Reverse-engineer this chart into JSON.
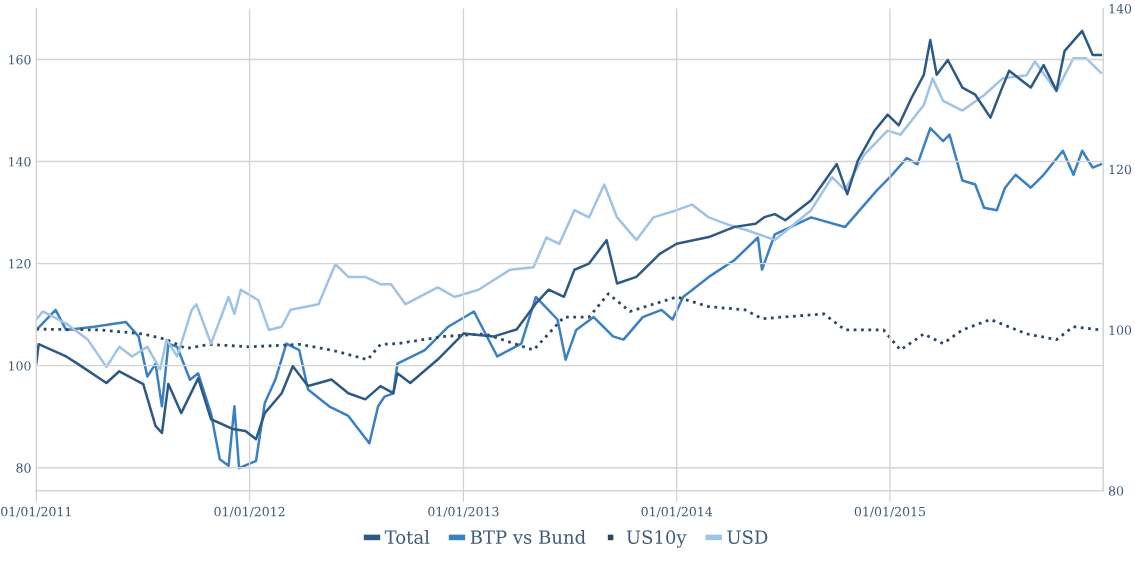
{
  "chart_data": {
    "type": "line",
    "legend": "bottom",
    "grid": true,
    "marker": "none",
    "xlim": [
      "2011-01-01",
      "2016-01-01"
    ],
    "xticks": [
      {
        "value": "2011-01-01",
        "label": "01/01/2011"
      },
      {
        "value": "2012-01-01",
        "label": "01/01/2012"
      },
      {
        "value": "2013-01-01",
        "label": "01/01/2013"
      },
      {
        "value": "2014-01-01",
        "label": "01/01/2014"
      },
      {
        "value": "2015-01-01",
        "label": "01/01/2015"
      }
    ],
    "ylim": [
      75.5,
      170
    ],
    "yticks": [
      80,
      100,
      120,
      140,
      160
    ],
    "y2lim": [
      80,
      140
    ],
    "y2ticks": [
      80,
      100,
      120,
      140
    ],
    "series": [
      {
        "name": "Total",
        "color": "#2d5a84",
        "line_style": "solid",
        "x": [
          "2011-01-01",
          "2011-01-05",
          "2011-02-21",
          "2011-03-11",
          "2011-05-01",
          "2011-05-23",
          "2011-07-03",
          "2011-07-24",
          "2011-08-04",
          "2011-08-15",
          "2011-09-06",
          "2011-10-05",
          "2011-10-27",
          "2011-12-03",
          "2011-12-25",
          "2012-01-12",
          "2012-01-27",
          "2012-02-25",
          "2012-03-15",
          "2012-04-10",
          "2012-05-20",
          "2012-06-18",
          "2012-07-17",
          "2012-08-12",
          "2012-09-03",
          "2012-09-10",
          "2012-10-02",
          "2012-11-18",
          "2013-01-01",
          "2013-02-21",
          "2013-04-02",
          "2013-05-05",
          "2013-05-27",
          "2013-06-22",
          "2013-07-10",
          "2013-08-04",
          "2013-09-03",
          "2013-09-21",
          "2013-10-24",
          "2013-12-03",
          "2014-01-01",
          "2014-02-25",
          "2014-04-10",
          "2014-05-16",
          "2014-05-31",
          "2014-06-18",
          "2014-07-06",
          "2014-08-19",
          "2014-10-02",
          "2014-10-20",
          "2014-11-07",
          "2014-12-06",
          "2014-12-28",
          "2015-01-16",
          "2015-02-07",
          "2015-02-28",
          "2015-03-11",
          "2015-03-22",
          "2015-04-10",
          "2015-05-05",
          "2015-05-27",
          "2015-06-22",
          "2015-07-10",
          "2015-07-24",
          "2015-08-30",
          "2015-09-21",
          "2015-10-13",
          "2015-10-27",
          "2015-11-26",
          "2015-12-14",
          "2015-12-28"
        ],
        "values": [
          100.5,
          104.2,
          101.8,
          100.5,
          96.6,
          98.9,
          96.4,
          88.2,
          86.8,
          96.4,
          90.7,
          97.5,
          89.5,
          87.6,
          87.2,
          85.6,
          90.7,
          94.6,
          99.9,
          96.0,
          97.3,
          94.6,
          93.4,
          96.0,
          94.6,
          98.5,
          96.6,
          101.2,
          106.3,
          105.7,
          107.1,
          112.2,
          114.9,
          113.5,
          118.8,
          120.0,
          124.6,
          116.1,
          117.4,
          121.9,
          123.9,
          125.2,
          127.2,
          127.8,
          129.1,
          129.7,
          128.5,
          132.4,
          139.5,
          133.6,
          140.2,
          146.1,
          149.2,
          147.1,
          152.5,
          157.0,
          163.8,
          157.0,
          159.9,
          154.5,
          153.1,
          148.6,
          153.9,
          157.8,
          154.5,
          158.9,
          153.9,
          161.7,
          165.6,
          160.9,
          160.9
        ]
      },
      {
        "name": "BTP vs Bund",
        "color": "#3a80c3",
        "line_style": "solid",
        "axis": "y2",
        "x": [
          "2011-01-01",
          "2011-02-03",
          "2011-02-21",
          "2011-04-10",
          "2011-06-03",
          "2011-06-25",
          "2011-07-10",
          "2011-07-24",
          "2011-08-04",
          "2011-08-15",
          "2011-08-30",
          "2011-09-21",
          "2011-10-05",
          "2011-10-27",
          "2011-11-11",
          "2011-11-26",
          "2011-12-06",
          "2011-12-14",
          "2012-01-12",
          "2012-01-27",
          "2012-02-14",
          "2012-03-04",
          "2012-03-26",
          "2012-04-10",
          "2012-05-16",
          "2012-06-18",
          "2012-07-24",
          "2012-08-08",
          "2012-08-19",
          "2012-09-03",
          "2012-09-10",
          "2012-10-27",
          "2012-12-06",
          "2013-01-19",
          "2013-02-28",
          "2013-04-10",
          "2013-05-05",
          "2013-06-11",
          "2013-06-25",
          "2013-07-13",
          "2013-08-12",
          "2013-09-14",
          "2013-10-02",
          "2013-11-04",
          "2013-12-06",
          "2013-12-25",
          "2014-01-12",
          "2014-02-25",
          "2014-04-10",
          "2014-05-20",
          "2014-05-27",
          "2014-06-18",
          "2014-08-19",
          "2014-10-16",
          "2014-12-10",
          "2015-01-01",
          "2015-01-30",
          "2015-02-17",
          "2015-03-11",
          "2015-04-02",
          "2015-04-13",
          "2015-05-05",
          "2015-05-27",
          "2015-06-11",
          "2015-07-03",
          "2015-07-17",
          "2015-08-04",
          "2015-08-30",
          "2015-09-21",
          "2015-10-24",
          "2015-11-11",
          "2015-11-26",
          "2015-12-14",
          "2015-12-28"
        ],
        "values": [
          100.0,
          102.5,
          100.0,
          100.4,
          101.0,
          99.2,
          94.2,
          95.8,
          90.5,
          98.3,
          97.9,
          93.8,
          94.6,
          89.6,
          83.9,
          83.1,
          90.5,
          82.8,
          83.7,
          90.9,
          93.8,
          98.3,
          97.5,
          92.6,
          90.5,
          89.3,
          85.9,
          90.5,
          91.7,
          92.1,
          95.8,
          97.5,
          100.4,
          102.3,
          96.7,
          98.3,
          104.1,
          101.3,
          96.3,
          100.0,
          101.6,
          99.2,
          98.8,
          101.6,
          102.5,
          101.3,
          104.1,
          106.6,
          108.7,
          111.5,
          107.5,
          111.9,
          114.0,
          112.8,
          117.4,
          119.0,
          121.4,
          120.6,
          125.1,
          123.5,
          124.3,
          118.6,
          118.1,
          115.2,
          114.9,
          117.7,
          119.3,
          117.7,
          119.3,
          122.3,
          119.3,
          122.3,
          120.2,
          120.6
        ]
      },
      {
        "name": "US10y",
        "color": "#2b4766",
        "line_style": "dotted",
        "axis": "y2",
        "x": [
          "2011-01-01",
          "2011-04-21",
          "2011-07-03",
          "2011-08-12",
          "2011-09-14",
          "2011-10-24",
          "2012-01-01",
          "2012-03-26",
          "2012-05-20",
          "2012-07-21",
          "2012-08-12",
          "2012-09-10",
          "2012-11-29",
          "2013-02-07",
          "2013-05-01",
          "2013-06-22",
          "2013-08-04",
          "2013-09-06",
          "2013-10-13",
          "2014-01-01",
          "2014-02-25",
          "2014-04-28",
          "2014-05-27",
          "2014-09-10",
          "2014-10-16",
          "2014-12-21",
          "2015-01-19",
          "2015-02-28",
          "2015-04-02",
          "2015-05-05",
          "2015-06-22",
          "2015-08-23",
          "2015-10-13",
          "2015-11-11",
          "2015-12-28"
        ],
        "values": [
          100.1,
          100.0,
          99.5,
          98.8,
          97.7,
          98.2,
          97.9,
          98.2,
          97.5,
          96.3,
          98.2,
          98.3,
          99.2,
          99.5,
          97.5,
          101.6,
          101.6,
          104.5,
          102.3,
          104.1,
          102.9,
          102.5,
          101.4,
          102.0,
          100.0,
          100.0,
          97.5,
          99.5,
          98.3,
          100.0,
          101.3,
          99.5,
          98.8,
          100.4,
          100.0
        ]
      },
      {
        "name": "USD",
        "color": "#9dc3e6",
        "line_style": "solid",
        "axis": "y2",
        "x": [
          "2011-01-01",
          "2011-01-12",
          "2011-02-21",
          "2011-03-30",
          "2011-05-01",
          "2011-05-23",
          "2011-06-14",
          "2011-07-10",
          "2011-08-01",
          "2011-08-12",
          "2011-08-30",
          "2011-09-24",
          "2011-10-02",
          "2011-10-27",
          "2011-11-26",
          "2011-12-06",
          "2011-12-17",
          "2012-01-16",
          "2012-02-03",
          "2012-02-25",
          "2012-03-11",
          "2012-04-28",
          "2012-05-27",
          "2012-06-18",
          "2012-07-17",
          "2012-08-12",
          "2012-08-30",
          "2012-09-24",
          "2012-11-18",
          "2012-12-17",
          "2013-01-27",
          "2013-03-22",
          "2013-05-01",
          "2013-05-23",
          "2013-06-14",
          "2013-07-10",
          "2013-08-04",
          "2013-08-30",
          "2013-09-21",
          "2013-10-24",
          "2013-11-22",
          "2014-01-01",
          "2014-01-27",
          "2014-02-25",
          "2014-03-30",
          "2014-05-01",
          "2014-06-18",
          "2014-08-19",
          "2014-09-24",
          "2014-10-16",
          "2014-11-18",
          "2014-12-28",
          "2015-01-19",
          "2015-02-28",
          "2015-03-15",
          "2015-04-02",
          "2015-05-05",
          "2015-06-11",
          "2015-07-13",
          "2015-08-23",
          "2015-09-06",
          "2015-10-13",
          "2015-11-11",
          "2015-12-03",
          "2015-12-28"
        ],
        "values": [
          101.3,
          102.3,
          100.8,
          98.8,
          95.4,
          97.9,
          96.7,
          97.9,
          95.1,
          98.8,
          96.7,
          102.5,
          103.2,
          98.3,
          104.1,
          102.0,
          105.0,
          103.7,
          100.0,
          100.4,
          102.5,
          103.2,
          108.2,
          106.6,
          106.6,
          105.7,
          105.7,
          103.2,
          105.3,
          104.1,
          105.0,
          107.5,
          107.8,
          111.5,
          110.7,
          114.9,
          114.0,
          118.1,
          114.0,
          111.2,
          114.0,
          114.9,
          115.6,
          114.0,
          113.1,
          112.4,
          111.2,
          114.9,
          119.0,
          117.4,
          121.8,
          124.8,
          124.3,
          128.0,
          131.3,
          128.5,
          127.3,
          129.2,
          131.3,
          131.7,
          133.4,
          129.7,
          133.8,
          133.8,
          132.0
        ]
      }
    ]
  }
}
